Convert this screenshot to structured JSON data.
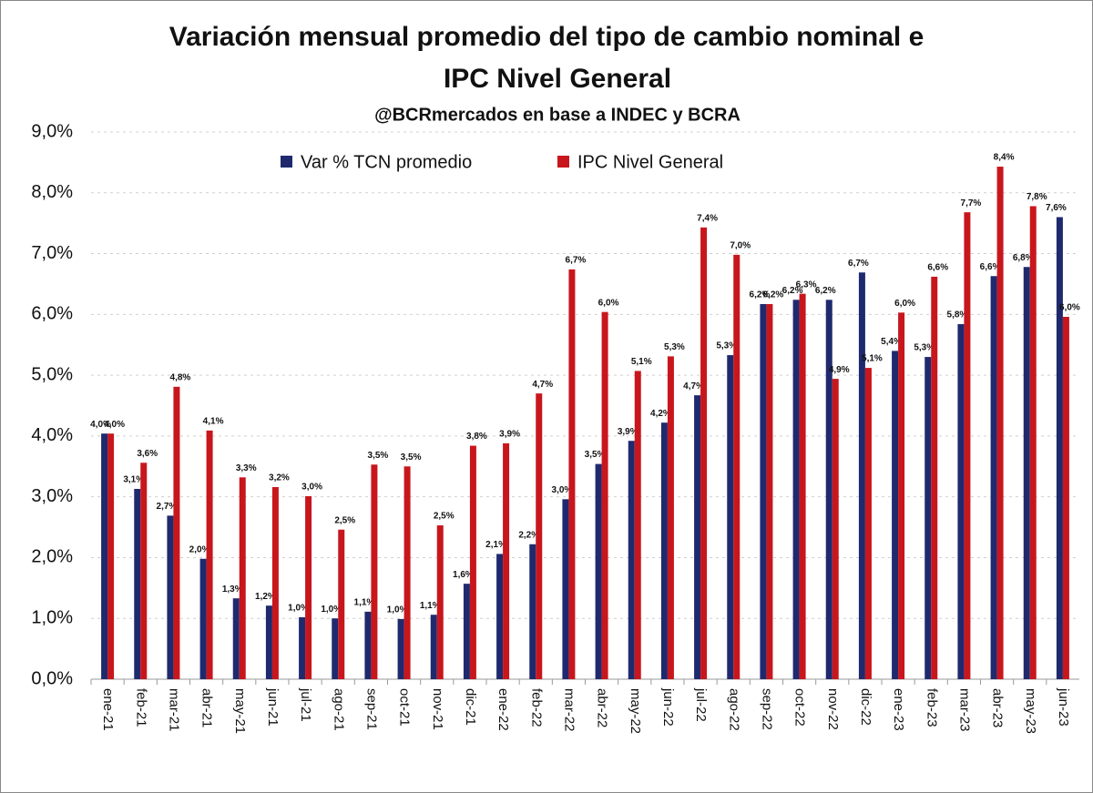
{
  "chart_data": {
    "type": "bar",
    "title": "Variación mensual promedio del tipo de cambio nominal e",
    "title_line2": "IPC Nivel General",
    "subtitle": "@BCRmercados en base a INDEC y BCRA",
    "categories": [
      "ene-21",
      "feb-21",
      "mar-21",
      "abr-21",
      "may-21",
      "jun-21",
      "jul-21",
      "ago-21",
      "sep-21",
      "oct-21",
      "nov-21",
      "dic-21",
      "ene-22",
      "feb-22",
      "mar-22",
      "abr-22",
      "may-22",
      "jun-22",
      "jul-22",
      "ago-22",
      "sep-22",
      "oct-22",
      "nov-22",
      "dic-22",
      "ene-23",
      "feb-23",
      "mar-23",
      "abr-23",
      "may-23",
      "jun-23"
    ],
    "series": [
      {
        "name": "Var % TCN promedio",
        "color": "#1f2a6e",
        "values": [
          4.04,
          3.13,
          2.69,
          1.98,
          1.33,
          1.21,
          1.02,
          1.0,
          1.11,
          0.99,
          1.06,
          1.57,
          2.06,
          2.22,
          2.96,
          3.54,
          3.92,
          4.22,
          4.67,
          5.33,
          6.17,
          6.24,
          6.24,
          6.69,
          5.4,
          5.3,
          5.84,
          6.63,
          6.78,
          7.6
        ],
        "value_labels": [
          "4,0%",
          "3,1%",
          "2,7%",
          "2,0%",
          "1,3%",
          "1,2%",
          "1,0%",
          "1,0%",
          "1,1%",
          "1,0%",
          "1,1%",
          "1,6%",
          "2,1%",
          "2,2%",
          "3,0%",
          "3,5%",
          "3,9%",
          "4,2%",
          "4,7%",
          "5,3%",
          "6,2%",
          "6,2%",
          "6,2%",
          "6,7%",
          "5,4%",
          "5,3%",
          "5,8%",
          "6,6%",
          "6,8%",
          "7,6%"
        ]
      },
      {
        "name": "IPC Nivel General",
        "color": "#c8161d",
        "values": [
          4.04,
          3.56,
          4.81,
          4.09,
          3.32,
          3.16,
          3.01,
          2.46,
          3.53,
          3.5,
          2.53,
          3.84,
          3.88,
          4.7,
          6.74,
          6.04,
          5.07,
          5.31,
          7.43,
          6.98,
          6.17,
          6.34,
          4.94,
          5.12,
          6.03,
          6.62,
          7.68,
          8.43,
          7.78,
          5.96
        ],
        "value_labels": [
          "4,0%",
          "3,6%",
          "4,8%",
          "4,1%",
          "3,3%",
          "3,2%",
          "3,0%",
          "2,5%",
          "3,5%",
          "3,5%",
          "2,5%",
          "3,8%",
          "3,9%",
          "4,7%",
          "6,7%",
          "6,0%",
          "5,1%",
          "5,3%",
          "7,4%",
          "7,0%",
          "6,2%",
          "6,3%",
          "4,9%",
          "5,1%",
          "6,0%",
          "6,6%",
          "7,7%",
          "8,4%",
          "7,8%",
          "6,0%"
        ]
      }
    ],
    "ylim": [
      0,
      9
    ],
    "yticks": [
      {
        "value": 0,
        "label": "0,0%"
      },
      {
        "value": 1,
        "label": "1,0%"
      },
      {
        "value": 2,
        "label": "2,0%"
      },
      {
        "value": 3,
        "label": "3,0%"
      },
      {
        "value": 4,
        "label": "4,0%"
      },
      {
        "value": 5,
        "label": "5,0%"
      },
      {
        "value": 6,
        "label": "6,0%"
      },
      {
        "value": 7,
        "label": "7,0%"
      },
      {
        "value": 8,
        "label": "8,0%"
      },
      {
        "value": 9,
        "label": "9,0%"
      }
    ],
    "grid": true,
    "legend": "top"
  }
}
